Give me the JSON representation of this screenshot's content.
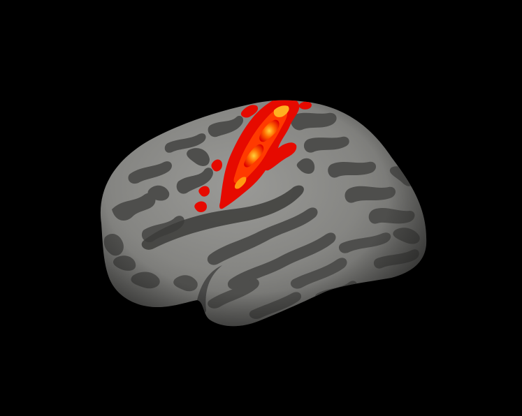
{
  "scene": {
    "background_color": "#000000",
    "object": "inflated-brain-surface",
    "view": "lateral",
    "surface_colors": {
      "gyri": "#8a8a87",
      "sulci": "#4e4e4c",
      "shadow": "#2a2a29"
    },
    "activation_colors": {
      "low": "#e00000",
      "mid": "#ff3a00",
      "high": "#ffd23a"
    }
  }
}
